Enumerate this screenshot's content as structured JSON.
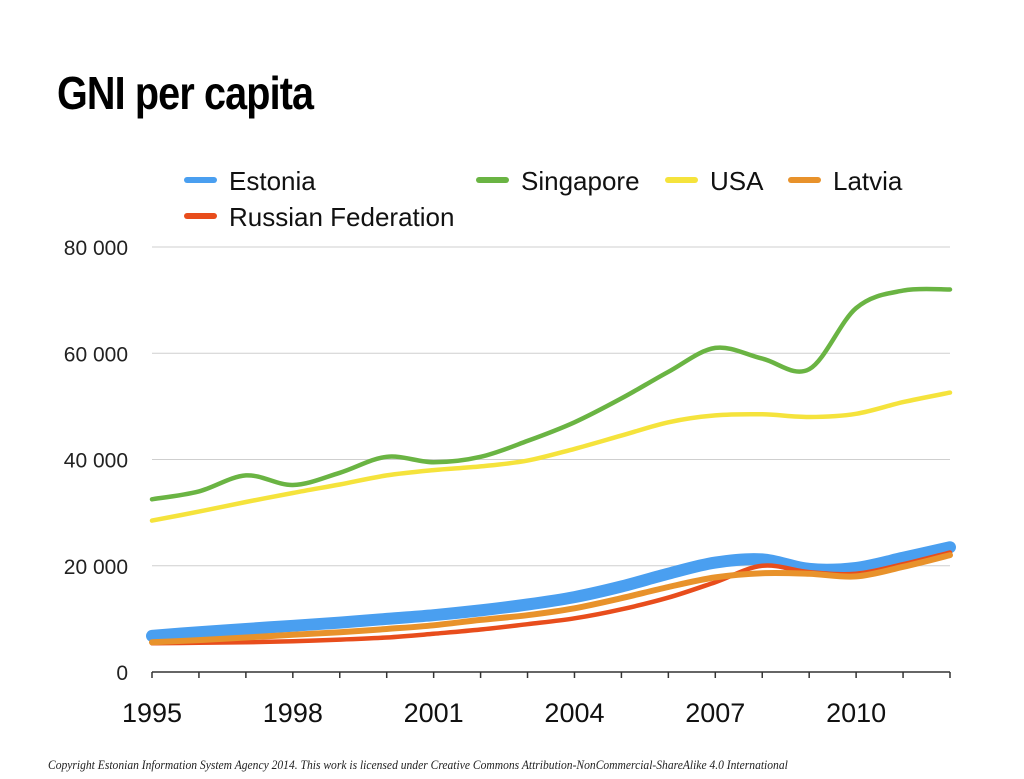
{
  "slide": {
    "title": "GNI per capita",
    "copyright": "Copyright Estonian Information System Agency 2014. This work is licensed under Creative Commons Attribution-NonCommercial-ShareAlike 4.0 International"
  },
  "chart_data": {
    "type": "line",
    "title": "GNI per capita",
    "xlabel": "",
    "ylabel": "",
    "x": [
      1995,
      1996,
      1997,
      1998,
      1999,
      2000,
      2001,
      2002,
      2003,
      2004,
      2005,
      2006,
      2007,
      2008,
      2009,
      2010,
      2011,
      2012
    ],
    "xlim": [
      1995,
      2012
    ],
    "ylim": [
      0,
      80000
    ],
    "x_ticks": [
      1995,
      1998,
      2001,
      2004,
      2007,
      2010
    ],
    "x_tick_labels": [
      "1995",
      "1998",
      "2001",
      "2004",
      "2007",
      "2010"
    ],
    "y_ticks": [
      0,
      20000,
      40000,
      60000,
      80000
    ],
    "y_tick_labels": [
      "0",
      "20 000",
      "40 000",
      "60 000",
      "80 000"
    ],
    "grid": true,
    "legend_position": "top",
    "series": [
      {
        "name": "Estonia",
        "color": "#4a9ff0",
        "width": 12,
        "values": [
          6800,
          7500,
          8100,
          8700,
          9300,
          10000,
          10700,
          11600,
          12700,
          14100,
          16100,
          18500,
          20600,
          21200,
          19400,
          19600,
          21500,
          23500
        ]
      },
      {
        "name": "Singapore",
        "color": "#6ab443",
        "width": 4.5,
        "values": [
          32500,
          34000,
          37000,
          35200,
          37500,
          40500,
          39500,
          40500,
          43500,
          47000,
          51500,
          56500,
          61000,
          59000,
          57000,
          68500,
          71800,
          72000
        ]
      },
      {
        "name": "USA",
        "color": "#f5e33c",
        "width": 4.5,
        "values": [
          28500,
          30200,
          32000,
          33700,
          35300,
          37000,
          38000,
          38700,
          39800,
          42000,
          44500,
          47000,
          48300,
          48500,
          48000,
          48600,
          50800,
          52600
        ]
      },
      {
        "name": "Latvia",
        "color": "#e8922b",
        "width": 6,
        "values": [
          5600,
          6000,
          6500,
          7000,
          7500,
          8100,
          8800,
          9800,
          10700,
          12000,
          13900,
          16000,
          17800,
          18600,
          18500,
          18000,
          19800,
          22000
        ]
      },
      {
        "name": "Russian Federation",
        "color": "#e84d1c",
        "width": 4.5,
        "values": [
          5400,
          5500,
          5600,
          5800,
          6100,
          6500,
          7200,
          8000,
          9000,
          10100,
          11800,
          14000,
          16900,
          20000,
          18800,
          18500,
          20300,
          22500
        ]
      }
    ]
  }
}
